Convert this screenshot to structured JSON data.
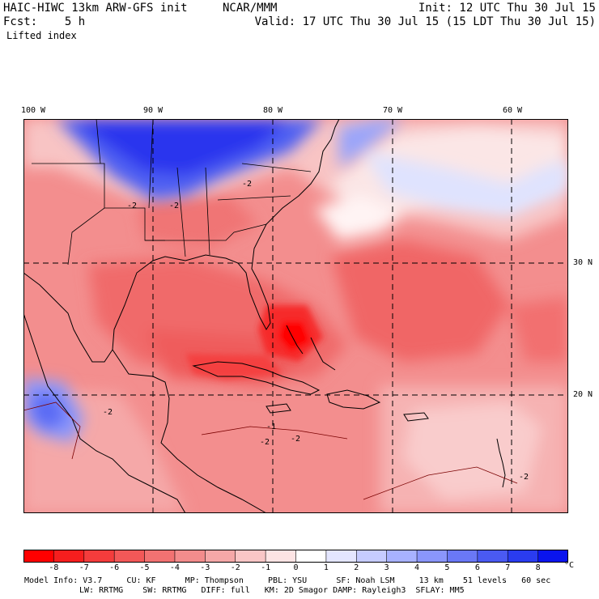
{
  "header": {
    "model_title": "HAIC-HIWC 13km ARW-GFS init",
    "org": "NCAR/MMM",
    "init": "Init: 12 UTC Thu 30 Jul 15",
    "fcst": "Fcst:    5 h",
    "valid": "Valid: 17 UTC Thu 30 Jul 15 (15 LDT Thu 30 Jul 15)",
    "field": "Lifted index"
  },
  "map": {
    "lon_labels": [
      "100 W",
      "90 W",
      "80 W",
      "70 W",
      "60 W"
    ],
    "lat_labels": [
      "30 N",
      "20 N"
    ],
    "contour_labels": [
      "-2",
      "-2",
      "-2",
      "-2",
      "-1",
      "-2",
      "-2",
      "-2"
    ]
  },
  "colorbar": {
    "labels": [
      "-8",
      "-7",
      "-6",
      "-5",
      "-4",
      "-3",
      "-2",
      "-1",
      "0",
      "1",
      "2",
      "3",
      "4",
      "5",
      "6",
      "7",
      "8"
    ],
    "unit": "°C",
    "colors": [
      "#ff0000",
      "#f61e1e",
      "#f43c3c",
      "#f35858",
      "#f27272",
      "#f38c8c",
      "#f5a8a8",
      "#f9c6c6",
      "#fde4e4",
      "#ffffff",
      "#e4e6ff",
      "#c6ccff",
      "#a8b2ff",
      "#8a96fc",
      "#6a78f6",
      "#4a5af2",
      "#2a3cf0",
      "#0a14ee"
    ]
  },
  "model_info": {
    "line1": "Model Info: V3.7     CU: KF      MP: Thompson     PBL: YSU      SF: Noah LSM     13 km    51 levels   60 sec",
    "line2": "LW: RRTMG    SW: RRTMG   DIFF: full   KM: 2D Smagor DAMP: Rayleigh3  SFLAY: MM5"
  }
}
